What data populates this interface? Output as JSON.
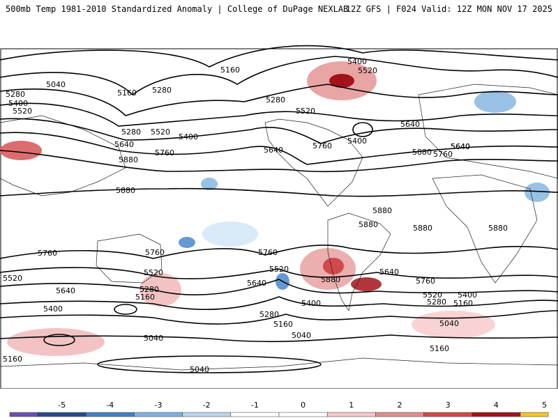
{
  "header": {
    "left_title": "500mb Temp 1981-2010 Standardized Anomaly | College of DuPage NEXLAB",
    "right_title": "12Z GFS | F024 Valid: 12Z MON NOV 17 2025"
  },
  "colorbar": {
    "ticks": [
      "-5",
      "-4",
      "-3",
      "-2",
      "-1",
      "0",
      "1",
      "2",
      "3",
      "4",
      "5"
    ],
    "colors": [
      "#6a4fb5",
      "#2a4a8a",
      "#3f7fc8",
      "#7fb2e0",
      "#b9d6ef",
      "#ffffff",
      "#ffffff",
      "#f7c8c8",
      "#e38d8d",
      "#d3494a",
      "#a3131a",
      "#f4c430"
    ]
  },
  "contour_labels": [
    {
      "text": "5400"
    },
    {
      "text": "5520"
    },
    {
      "text": "5160"
    },
    {
      "text": "5040"
    },
    {
      "text": "5280"
    },
    {
      "text": "5160"
    },
    {
      "text": "5280"
    },
    {
      "text": "5280"
    },
    {
      "text": "5400"
    },
    {
      "text": "5520"
    },
    {
      "text": "5640"
    },
    {
      "text": "5520"
    },
    {
      "text": "5280"
    },
    {
      "text": "5520"
    },
    {
      "text": "5400"
    },
    {
      "text": "5640"
    },
    {
      "text": "5760"
    },
    {
      "text": "5880"
    },
    {
      "text": "5880"
    },
    {
      "text": "5640"
    },
    {
      "text": "5760"
    },
    {
      "text": "5400"
    },
    {
      "text": "5640"
    },
    {
      "text": "5880"
    },
    {
      "text": "5640"
    },
    {
      "text": "5760"
    },
    {
      "text": "5880"
    },
    {
      "text": "5880"
    },
    {
      "text": "5880"
    },
    {
      "text": "5880"
    },
    {
      "text": "5760"
    },
    {
      "text": "5760"
    },
    {
      "text": "5520"
    },
    {
      "text": "5760"
    },
    {
      "text": "5520"
    },
    {
      "text": "5640"
    },
    {
      "text": "5520"
    },
    {
      "text": "5280"
    },
    {
      "text": "5160"
    },
    {
      "text": "5400"
    },
    {
      "text": "5640"
    },
    {
      "text": "5880"
    },
    {
      "text": "5640"
    },
    {
      "text": "5760"
    },
    {
      "text": "5520"
    },
    {
      "text": "5400"
    },
    {
      "text": "5280"
    },
    {
      "text": "5160"
    },
    {
      "text": "5400"
    },
    {
      "text": "5280"
    },
    {
      "text": "5160"
    },
    {
      "text": "5040"
    },
    {
      "text": "5040"
    },
    {
      "text": "5160"
    },
    {
      "text": "5040"
    },
    {
      "text": "5160"
    },
    {
      "text": "5040"
    }
  ]
}
